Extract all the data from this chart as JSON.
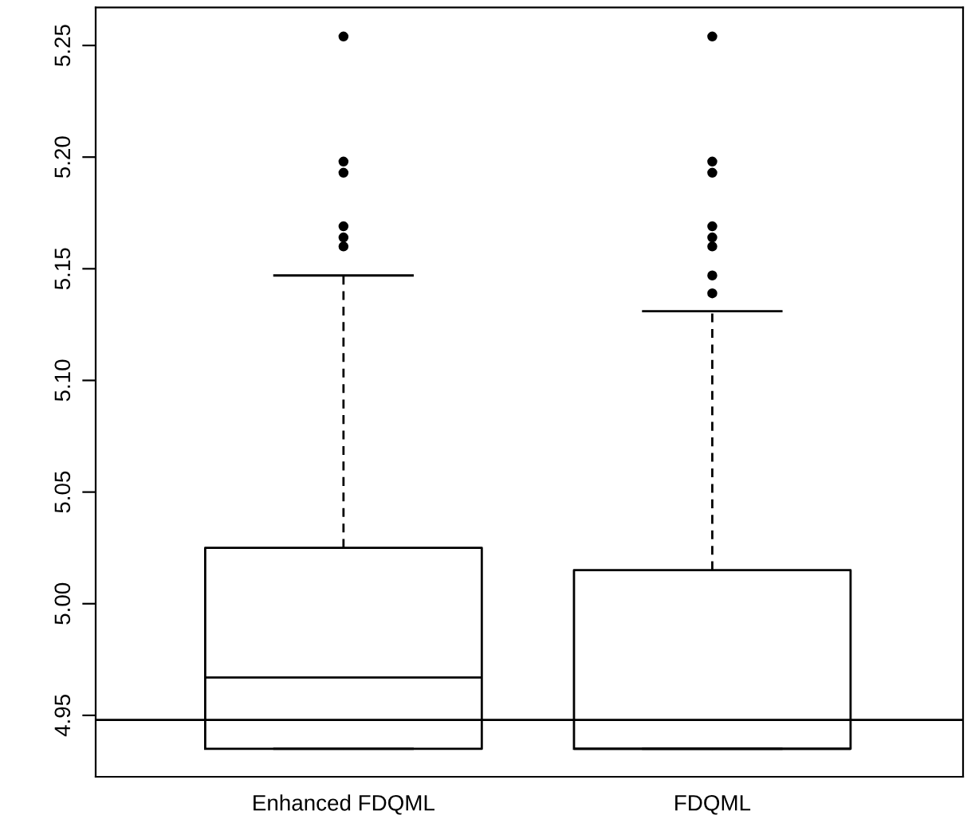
{
  "chart_data": {
    "type": "box",
    "categories": [
      "Enhanced FDQML",
      "FDQML"
    ],
    "boxes": [
      {
        "low": 4.935,
        "q1": 4.935,
        "median": 4.967,
        "q3": 5.025,
        "high": 5.147,
        "outliers": [
          5.254,
          5.198,
          5.193,
          5.169,
          5.164,
          5.16
        ]
      },
      {
        "low": 4.935,
        "q1": 4.935,
        "median": 4.935,
        "q3": 5.015,
        "high": 5.131,
        "outliers": [
          5.254,
          5.198,
          5.193,
          5.169,
          5.164,
          5.16,
          5.147,
          5.139
        ]
      }
    ],
    "ylim": [
      4.9225,
      5.267
    ],
    "yticks": [
      4.95,
      {
        "value": 5.0,
        "label": "5.00"
      },
      5.05,
      {
        "value": 5.1,
        "label": "5.10"
      },
      5.15,
      {
        "value": 5.2,
        "label": "5.20"
      },
      5.25
    ],
    "ref_lines": [
      {
        "axis": "y",
        "value": 4.948,
        "color": "#000000"
      }
    ],
    "grid": false,
    "legend": false
  }
}
